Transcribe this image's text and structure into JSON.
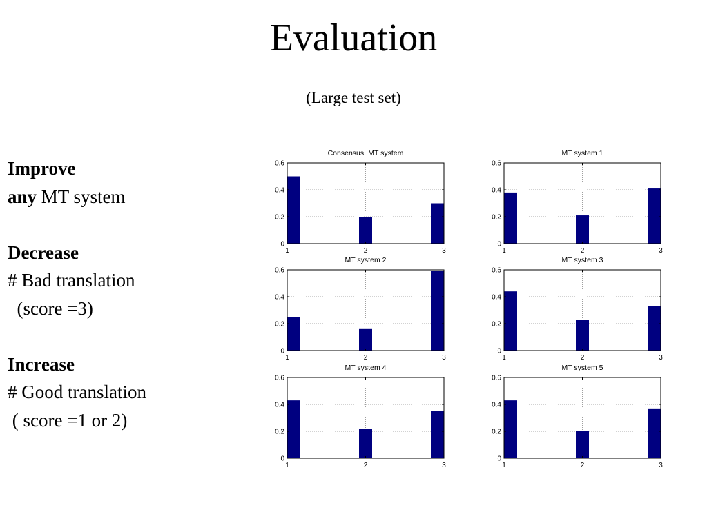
{
  "title": "Evaluation",
  "subtitle": "(Large test set)",
  "notes": {
    "improve_bold": "Improve",
    "any_bold": "any",
    "any_rest": " MT system",
    "decrease_bold": "Decrease",
    "bad_line": "# Bad translation",
    "bad_score": "  (score =3)",
    "increase_bold": "Increase",
    "good_line": "# Good translation",
    "good_score": " ( score =1 or 2)"
  },
  "colors": {
    "bar": "#000080"
  },
  "chart_data": [
    {
      "type": "bar",
      "title": "Consensus−MT system",
      "categories": [
        1,
        2,
        3
      ],
      "values": [
        0.5,
        0.2,
        0.3
      ],
      "xlim": [
        1,
        3
      ],
      "ylim": [
        0,
        0.6
      ],
      "xticks": [
        "1",
        "2",
        "3"
      ],
      "yticks": [
        "0",
        "0.2",
        "0.4",
        "0.6"
      ],
      "grid": true
    },
    {
      "type": "bar",
      "title": "MT system 1",
      "categories": [
        1,
        2,
        3
      ],
      "values": [
        0.38,
        0.21,
        0.41
      ],
      "xlim": [
        1,
        3
      ],
      "ylim": [
        0,
        0.6
      ],
      "xticks": [
        "1",
        "2",
        "3"
      ],
      "yticks": [
        "0",
        "0.2",
        "0.4",
        "0.6"
      ],
      "grid": true
    },
    {
      "type": "bar",
      "title": "MT system 2",
      "categories": [
        1,
        2,
        3
      ],
      "values": [
        0.25,
        0.16,
        0.59
      ],
      "xlim": [
        1,
        3
      ],
      "ylim": [
        0,
        0.6
      ],
      "xticks": [
        "1",
        "2",
        "3"
      ],
      "yticks": [
        "0",
        "0.2",
        "0.4",
        "0.6"
      ],
      "grid": true
    },
    {
      "type": "bar",
      "title": "MT system 3",
      "categories": [
        1,
        2,
        3
      ],
      "values": [
        0.44,
        0.23,
        0.33
      ],
      "xlim": [
        1,
        3
      ],
      "ylim": [
        0,
        0.6
      ],
      "xticks": [
        "1",
        "2",
        "3"
      ],
      "yticks": [
        "0",
        "0.2",
        "0.4",
        "0.6"
      ],
      "grid": true
    },
    {
      "type": "bar",
      "title": "MT system 4",
      "categories": [
        1,
        2,
        3
      ],
      "values": [
        0.43,
        0.22,
        0.35
      ],
      "xlim": [
        1,
        3
      ],
      "ylim": [
        0,
        0.6
      ],
      "xticks": [
        "1",
        "2",
        "3"
      ],
      "yticks": [
        "0",
        "0.2",
        "0.4",
        "0.6"
      ],
      "grid": true
    },
    {
      "type": "bar",
      "title": "MT system 5",
      "categories": [
        1,
        2,
        3
      ],
      "values": [
        0.43,
        0.2,
        0.37
      ],
      "xlim": [
        1,
        3
      ],
      "ylim": [
        0,
        0.6
      ],
      "xticks": [
        "1",
        "2",
        "3"
      ],
      "yticks": [
        "0",
        "0.2",
        "0.4",
        "0.6"
      ],
      "grid": true
    }
  ]
}
